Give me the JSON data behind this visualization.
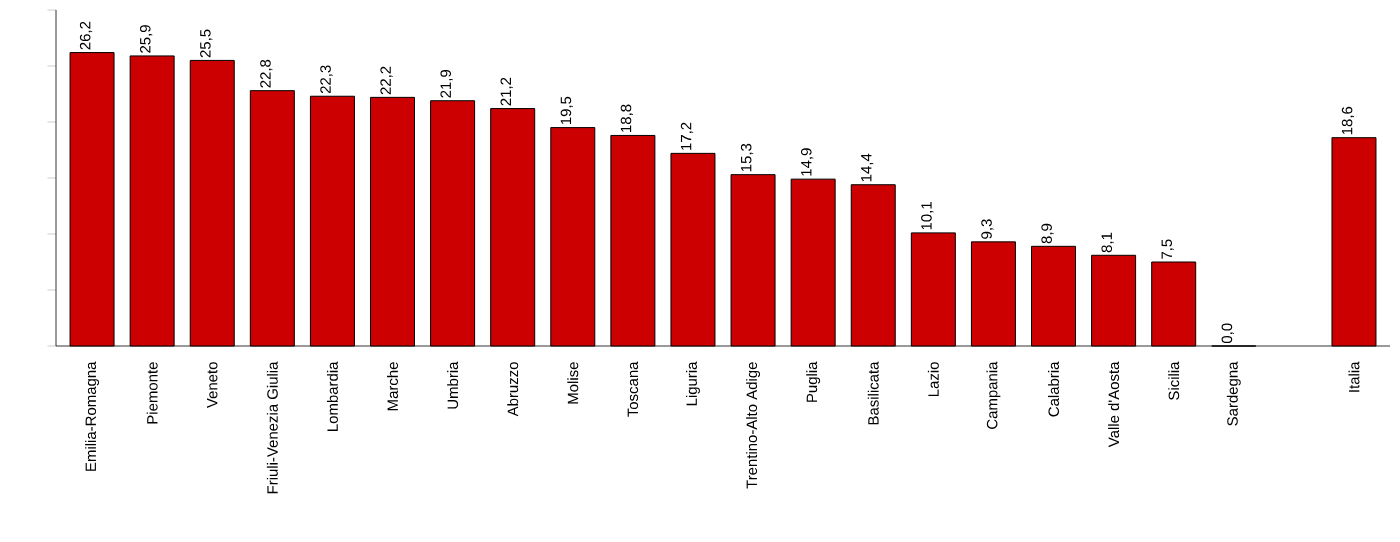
{
  "chart_data": {
    "type": "bar",
    "categories": [
      "Emilia-Romagna",
      "Piemonte",
      "Veneto",
      "Friuli-Venezia Giulia",
      "Lombardia",
      "Marche",
      "Umbria",
      "Abruzzo",
      "Molise",
      "Toscana",
      "Liguria",
      "Trentino-Alto Adige",
      "Puglia",
      "Basilicata",
      "Lazio",
      "Campania",
      "Calabria",
      "Valle d'Aosta",
      "Sicilia",
      "Sardegna",
      null,
      "Italia"
    ],
    "values": [
      26.2,
      25.9,
      25.5,
      22.8,
      22.3,
      22.2,
      21.9,
      21.2,
      19.5,
      18.8,
      17.2,
      15.3,
      14.9,
      14.4,
      10.1,
      9.3,
      8.9,
      8.1,
      7.5,
      0.0,
      null,
      18.6
    ],
    "value_labels": [
      "26,2",
      "25,9",
      "25,5",
      "22,8",
      "22,3",
      "22,2",
      "21,9",
      "21,2",
      "19,5",
      "18,8",
      "17,2",
      "15,3",
      "14,9",
      "14,4",
      "10,1",
      "9,3",
      "8,9",
      "8,1",
      "7,5",
      "0,0",
      null,
      "18,6"
    ],
    "color": "#cc0000",
    "ylim": [
      0,
      30
    ],
    "yticks": [
      {
        "value": 0,
        "label": null
      },
      {
        "value": 5,
        "label": null
      },
      {
        "value": 10,
        "label": null
      },
      {
        "value": 15,
        "label": null
      },
      {
        "value": 20,
        "label": null
      },
      {
        "value": 25,
        "label": null
      },
      {
        "value": 30,
        "label": null
      }
    ],
    "tick_labels": "x"
  }
}
